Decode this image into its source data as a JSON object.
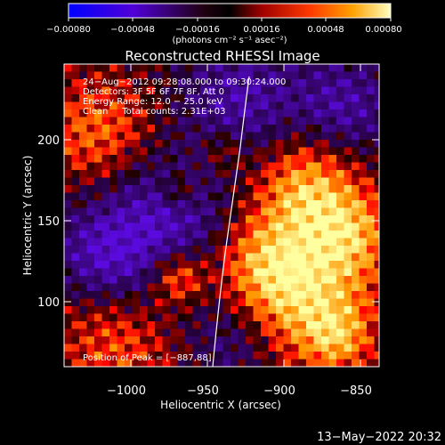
{
  "colorbar": {
    "ticks": [
      "−0.00080",
      "−0.00048",
      "−0.00016",
      "0.00016",
      "0.00048",
      "0.00080"
    ],
    "units_label": "(photons cm⁻² s⁻¹ asec⁻²)",
    "colors": [
      "#0000ff",
      "#6a00c8",
      "#2a0000",
      "#b00000",
      "#ff4000",
      "#ffa000",
      "#ffff80"
    ]
  },
  "title": "Reconstructed RHESSI Image",
  "info": {
    "time_range": "24−Aug−2012 09:28:08.000 to 09:30:24.000",
    "detectors": "Detectors: 3F 5F 6F 7F 8F, Att 0",
    "energy_range": "Energy Range: 12.0 − 25.0 keV",
    "clean": "Clean     Total counts: 2.31E+03",
    "peak": "Position of Peak = [−887,88]"
  },
  "axes": {
    "xlabel": "Heliocentric X (arcsec)",
    "ylabel": "Heliocentric Y (arcsec)",
    "xticks": [
      "−1000",
      "−950",
      "−900",
      "−850"
    ],
    "yticks": [
      "100",
      "150",
      "200"
    ]
  },
  "footer": {
    "date": "13−May−2022 20:32"
  }
}
